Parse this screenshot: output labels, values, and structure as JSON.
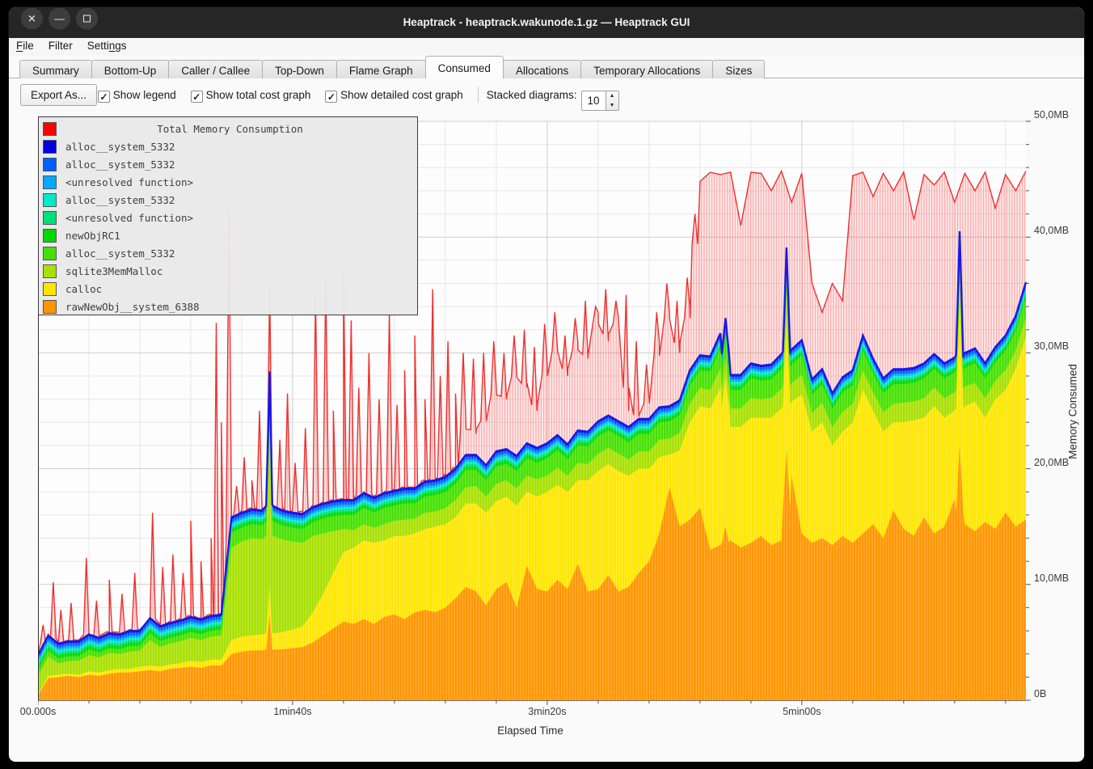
{
  "window": {
    "title": "Heaptrack - heaptrack.wakunode.1.gz — Heaptrack GUI",
    "controls": [
      {
        "name": "close",
        "glyph": "✕"
      },
      {
        "name": "minimize",
        "glyph": "—"
      },
      {
        "name": "maximize",
        "glyph": ""
      }
    ]
  },
  "menu": {
    "items": [
      {
        "id": "file",
        "pre": "",
        "key": "F",
        "post": "ile"
      },
      {
        "id": "filter",
        "pre": "Filter",
        "key": "",
        "post": ""
      },
      {
        "id": "settings",
        "pre": "Setti",
        "key": "n",
        "post": "gs"
      }
    ]
  },
  "tabs": {
    "active_index": 5,
    "labels": [
      "Summary",
      "Bottom-Up",
      "Caller / Callee",
      "Top-Down",
      "Flame Graph",
      "Consumed",
      "Allocations",
      "Temporary Allocations",
      "Sizes"
    ]
  },
  "toolbar": {
    "export_label": "Export As...",
    "checkboxes": [
      {
        "label": "Show legend",
        "checked": true
      },
      {
        "label": "Show total cost graph",
        "checked": true
      },
      {
        "label": "Show detailed cost graph",
        "checked": true
      }
    ],
    "stacked_diagrams": {
      "label": "Stacked diagrams:",
      "value": "10"
    }
  },
  "legend": {
    "items": [
      {
        "color": "#ff0000",
        "label": "Total Memory Consumption",
        "is_title": true
      },
      {
        "color": "#0000e0",
        "label": "alloc__system_5332"
      },
      {
        "color": "#0060ff",
        "label": "alloc__system_5332"
      },
      {
        "color": "#00aaff",
        "label": "<unresolved function>"
      },
      {
        "color": "#00ebc8",
        "label": "alloc__system_5332"
      },
      {
        "color": "#00e07a",
        "label": "<unresolved function>"
      },
      {
        "color": "#00d800",
        "label": "newObjRC1"
      },
      {
        "color": "#45e000",
        "label": "alloc__system_5332"
      },
      {
        "color": "#a8e000",
        "label": "sqlite3MemMalloc"
      },
      {
        "color": "#ffe600",
        "label": "calloc"
      },
      {
        "color": "#ff9500",
        "label": "rawNewObj__system_6388"
      }
    ]
  },
  "chart_data": {
    "type": "area",
    "title": "Total Memory Consumption",
    "xlabel": "Elapsed Time",
    "ylabel": "Memory Consumed",
    "ylim": [
      0,
      50
    ],
    "y_unit": "MB",
    "x_range_seconds": [
      0,
      388
    ],
    "x_ticks": [
      {
        "label": "00.000s",
        "t": 0
      },
      {
        "label": "1min40s",
        "t": 100
      },
      {
        "label": "3min20s",
        "t": 200
      },
      {
        "label": "5min00s",
        "t": 300
      }
    ],
    "y_ticks": [
      {
        "label": "0B",
        "v": 0
      },
      {
        "label": "10,0MB",
        "v": 10
      },
      {
        "label": "20,0MB",
        "v": 20
      },
      {
        "label": "30,0MB",
        "v": 30
      },
      {
        "label": "40,0MB",
        "v": 40
      },
      {
        "label": "50,0MB",
        "v": 50
      }
    ],
    "grid": {
      "x_minor_step": 20,
      "x_major_step": 100,
      "y_minor_step": 2,
      "y_major_step": 10
    },
    "step_seconds": 4,
    "stack_series": [
      {
        "name": "rawNewObj__system_6388",
        "color": "#ff9500",
        "values": [
          0.4,
          1.9,
          2.0,
          2.1,
          2.0,
          2.2,
          2.1,
          2.3,
          2.4,
          2.4,
          2.5,
          2.6,
          2.5,
          2.7,
          2.8,
          2.9,
          2.8,
          3.0,
          3.0,
          4.0,
          4.2,
          4.3,
          4.3,
          4.4,
          4.4,
          4.5,
          4.6,
          5.0,
          5.6,
          6.2,
          6.8,
          6.6,
          7.0,
          6.6,
          7.2,
          7.4,
          7.0,
          7.6,
          7.8,
          7.6,
          8.0,
          8.8,
          9.8,
          9.4,
          8.2,
          9.6,
          10.2,
          8.0,
          11.6,
          9.6,
          9.4,
          10.4,
          9.6,
          11.8,
          9.4,
          9.6,
          10.8,
          9.4,
          9.8,
          11.0,
          12.0,
          14.4,
          18.4,
          15.0,
          15.6,
          16.6,
          13.0,
          13.4,
          13.8,
          13.2,
          13.6,
          14.2,
          13.4,
          13.8,
          19.4,
          14.4,
          13.6,
          14.0,
          13.4,
          14.2,
          13.6,
          14.4,
          15.2,
          14.0,
          16.4,
          14.8,
          14.2,
          15.8,
          14.4,
          15.0,
          17.4,
          15.2,
          14.6,
          15.4,
          14.8,
          16.2,
          15.0,
          15.6
        ]
      },
      {
        "name": "calloc",
        "color": "#ffe600",
        "values": [
          0.1,
          0.2,
          0.2,
          0.2,
          0.2,
          0.3,
          0.3,
          0.3,
          0.3,
          0.3,
          0.4,
          0.4,
          0.4,
          0.4,
          0.4,
          0.5,
          0.5,
          0.5,
          0.5,
          1.2,
          1.3,
          1.3,
          1.4,
          1.4,
          1.5,
          1.6,
          1.8,
          2.6,
          3.6,
          4.8,
          6.0,
          6.6,
          6.8,
          7.0,
          6.6,
          6.8,
          7.2,
          6.8,
          7.0,
          7.4,
          7.2,
          7.0,
          7.2,
          7.6,
          8.0,
          7.6,
          7.4,
          8.8,
          6.4,
          8.0,
          8.6,
          8.2,
          8.4,
          7.2,
          9.6,
          10.2,
          9.6,
          10.4,
          9.6,
          9.0,
          8.0,
          6.6,
          2.8,
          6.6,
          8.4,
          8.8,
          12.2,
          13.6,
          9.8,
          10.4,
          10.8,
          10.2,
          11.0,
          11.4,
          6.4,
          12.0,
          9.6,
          10.0,
          8.6,
          9.0,
          10.4,
          12.4,
          9.8,
          9.2,
          7.6,
          9.2,
          10.0,
          8.6,
          11.0,
          9.4,
          7.6,
          10.2,
          11.2,
          9.0,
          11.2,
          10.6,
          13.6,
          15.8
        ]
      },
      {
        "name": "sqlite3MemMalloc",
        "color": "#a8e000",
        "values": [
          1.6,
          1.7,
          1.0,
          1.1,
          1.2,
          1.4,
          1.3,
          1.5,
          1.3,
          1.5,
          1.4,
          2.2,
          1.7,
          1.8,
          1.9,
          2.0,
          1.9,
          2.0,
          2.1,
          8.0,
          8.2,
          8.4,
          8.2,
          8.5,
          8.0,
          7.6,
          7.2,
          6.6,
          5.2,
          3.6,
          2.0,
          1.5,
          1.4,
          1.3,
          1.4,
          1.3,
          1.4,
          1.3,
          1.4,
          1.3,
          1.4,
          1.5,
          1.4,
          1.5,
          1.4,
          1.5,
          1.4,
          1.5,
          1.4,
          1.5,
          1.4,
          1.5,
          1.4,
          1.5,
          1.4,
          1.5,
          1.4,
          1.5,
          1.4,
          1.5,
          1.5,
          1.5,
          1.4,
          1.5,
          1.6,
          1.6,
          1.6,
          1.7,
          1.6,
          1.6,
          1.7,
          1.6,
          1.7,
          1.7,
          1.6,
          1.7,
          1.6,
          1.7,
          1.6,
          1.7,
          1.6,
          1.7,
          1.6,
          1.7,
          1.6,
          1.7,
          1.6,
          1.7,
          1.6,
          1.7,
          1.6,
          1.7,
          1.6,
          1.7,
          1.6,
          1.7,
          1.6,
          1.7
        ]
      },
      {
        "name": "alloc__system_5332",
        "color": "#45e000",
        "values": [
          0.5,
          0.5,
          0.4,
          0.4,
          0.4,
          0.5,
          0.4,
          0.4,
          0.4,
          0.5,
          0.4,
          0.6,
          0.5,
          0.5,
          0.5,
          0.5,
          0.5,
          0.5,
          0.5,
          1.3,
          1.2,
          1.2,
          1.2,
          1.3,
          1.2,
          1.2,
          1.2,
          1.2,
          1.3,
          1.3,
          1.2,
          1.3,
          1.4,
          1.3,
          1.4,
          1.3,
          1.4,
          1.3,
          1.4,
          1.4,
          1.4,
          1.4,
          1.5,
          1.4,
          1.4,
          1.5,
          1.4,
          1.5,
          1.5,
          1.4,
          1.5,
          1.5,
          1.4,
          1.5,
          1.5,
          1.5,
          1.5,
          1.5,
          1.5,
          1.5,
          1.5,
          1.5,
          1.5,
          1.5,
          1.6,
          1.5,
          1.6,
          1.7,
          1.6,
          1.6,
          1.7,
          1.6,
          1.6,
          1.7,
          1.6,
          1.7,
          1.6,
          1.6,
          1.6,
          1.7,
          1.6,
          1.7,
          1.6,
          1.6,
          1.7,
          1.6,
          1.6,
          1.7,
          1.6,
          1.7,
          1.7,
          1.6,
          1.7,
          1.7,
          1.6,
          1.7,
          1.7,
          1.7
        ]
      }
    ],
    "thin_caps": [
      {
        "name": "newObjRC1",
        "color": "#00d800",
        "h": 0.3
      },
      {
        "name": "unresolved_function_lower",
        "color": "#00e07a",
        "h": 0.2
      },
      {
        "name": "alloc__system_5332_teal",
        "color": "#00ebc8",
        "h": 0.2
      },
      {
        "name": "unresolved_function_upper",
        "color": "#00aaff",
        "h": 0.2
      },
      {
        "name": "alloc__system_5332_blue",
        "color": "#0060ff",
        "h": 0.25
      },
      {
        "name": "alloc__system_5332_darkblue",
        "color": "#0000e0",
        "h": 0.15
      }
    ],
    "stack_spikes": [
      [
        91,
        28.4
      ],
      [
        270,
        33.0
      ],
      [
        294,
        39.1
      ],
      [
        362,
        40.5
      ]
    ],
    "total_series": {
      "name": "Total Memory Consumption",
      "color": "#ee3030",
      "base": [
        4.0,
        5.7,
        5.0,
        5.2,
        5.2,
        5.8,
        5.5,
        5.9,
        5.8,
        6.1,
        6.1,
        7.2,
        6.5,
        6.8,
        7.0,
        7.3,
        7.1,
        7.4,
        7.5,
        15.9,
        16.3,
        16.6,
        16.5,
        17.0,
        16.5,
        16.3,
        16.2,
        16.8,
        17.1,
        17.3,
        17.4,
        17.4,
        18.0,
        17.6,
        18.0,
        18.2,
        18.4,
        18.4,
        19.0,
        19.1,
        19.4,
        20.1,
        24.5,
        23.0,
        24.5,
        27.0,
        26.0,
        28.5,
        27.0,
        25.0,
        29.0,
        30.5,
        28.0,
        31.0,
        29.5,
        33.5,
        31.0,
        33.0,
        25.0,
        24.5,
        26.0,
        31.0,
        33.5,
        30.0,
        34.0,
        44.8,
        45.6,
        45.4,
        45.6,
        41.0,
        45.6,
        45.5,
        44.0,
        45.7,
        43.0,
        45.5,
        36.0,
        33.5,
        36.0,
        34.5,
        45.3,
        45.6,
        43.5,
        45.5,
        44.0,
        45.6,
        41.5,
        45.4,
        44.5,
        45.6,
        43.0,
        45.5,
        44.0,
        45.6,
        42.5,
        45.4,
        44.0,
        45.7
      ],
      "spikes": [
        [
          2,
          6.5
        ],
        [
          6,
          10.2
        ],
        [
          9,
          7.8
        ],
        [
          13,
          8.4
        ],
        [
          19,
          12.3
        ],
        [
          23,
          8.6
        ],
        [
          28,
          10.4
        ],
        [
          33,
          9.2
        ],
        [
          38,
          11.0
        ],
        [
          45,
          16.2
        ],
        [
          49,
          11.5
        ],
        [
          53,
          12.6
        ],
        [
          57,
          11.0
        ],
        [
          60,
          15.5
        ],
        [
          64,
          12.0
        ],
        [
          68,
          14.0
        ],
        [
          70,
          32.6
        ],
        [
          72,
          24.0
        ],
        [
          75,
          42.3
        ],
        [
          78,
          18.5
        ],
        [
          81,
          21.0
        ],
        [
          84,
          19.0
        ],
        [
          87,
          25.0
        ],
        [
          91,
          35.8
        ],
        [
          95,
          22.5
        ],
        [
          98,
          26.5
        ],
        [
          101,
          20.5
        ],
        [
          105,
          23.5
        ],
        [
          109,
          35.0
        ],
        [
          113,
          36.5
        ],
        [
          116,
          25.0
        ],
        [
          120,
          37.0
        ],
        [
          123,
          32.8
        ],
        [
          126,
          27.0
        ],
        [
          130,
          30.0
        ],
        [
          134,
          26.0
        ],
        [
          138,
          33.5
        ],
        [
          141,
          25.5
        ],
        [
          144,
          28.5
        ],
        [
          148,
          31.5
        ],
        [
          152,
          26.0
        ],
        [
          155,
          35.5
        ],
        [
          158,
          28.0
        ],
        [
          161,
          31.0
        ],
        [
          164,
          26.5
        ],
        [
          167,
          30.0
        ],
        [
          171,
          29.5
        ],
        [
          175,
          30.0
        ],
        [
          179,
          31.0
        ],
        [
          183,
          30.0
        ],
        [
          187,
          31.5
        ],
        [
          191,
          32.0
        ],
        [
          195,
          30.5
        ],
        [
          199,
          32.5
        ],
        [
          203,
          33.5
        ],
        [
          207,
          31.5
        ],
        [
          211,
          33.0
        ],
        [
          215,
          34.5
        ],
        [
          219,
          34.0
        ],
        [
          223,
          35.5
        ],
        [
          227,
          34.5
        ],
        [
          231,
          35.0
        ],
        [
          235,
          31.0
        ],
        [
          239,
          29.0
        ],
        [
          243,
          33.5
        ],
        [
          247,
          36.0
        ],
        [
          251,
          34.5
        ],
        [
          255,
          36.5
        ],
        [
          258,
          42.0
        ]
      ]
    },
    "top_line_color": "#1a18e8"
  }
}
